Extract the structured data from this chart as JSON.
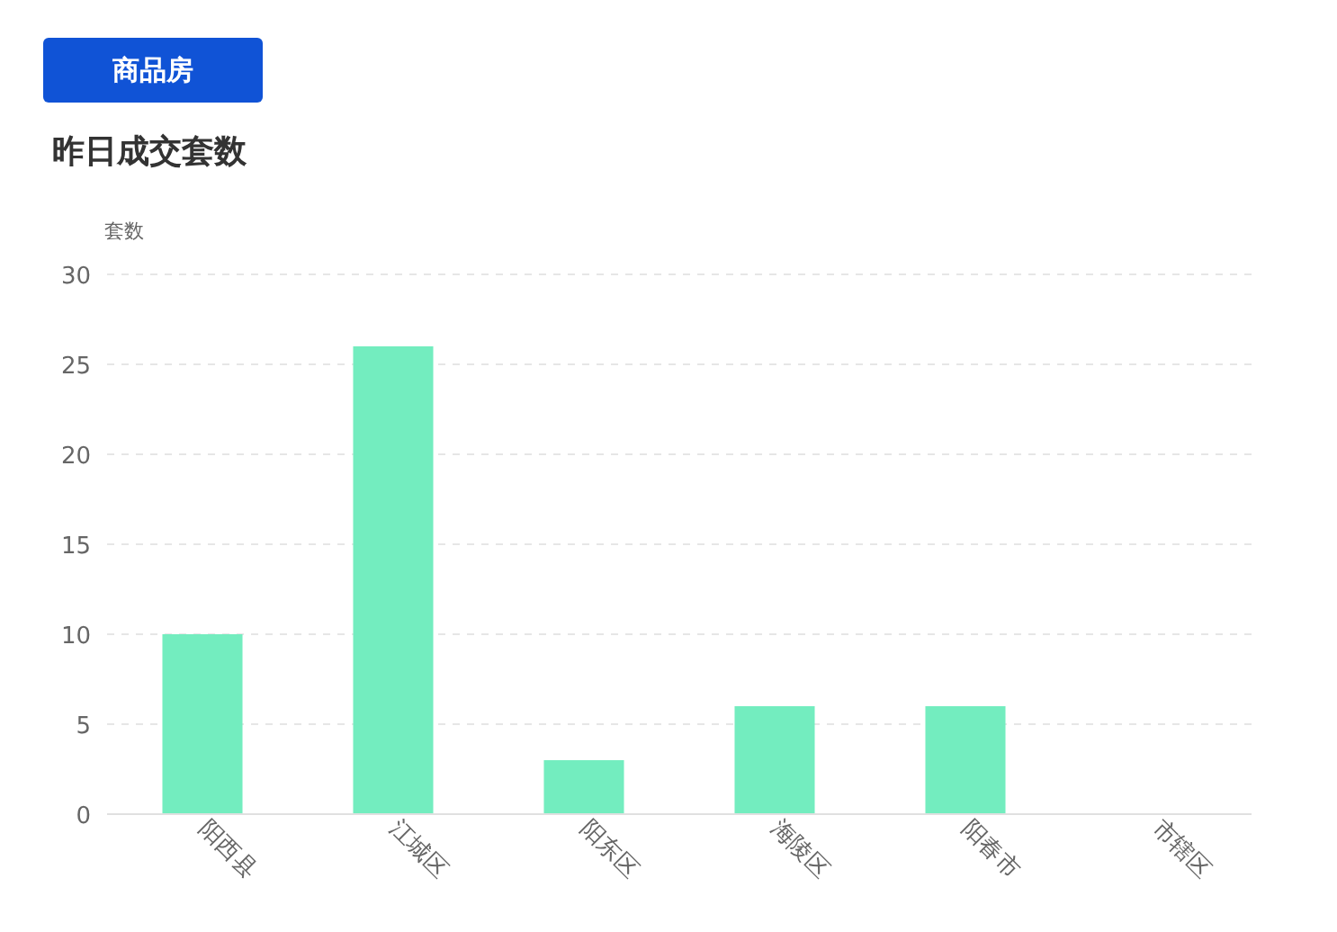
{
  "chart_data": {
    "type": "bar",
    "title": "昨日成交套数",
    "ylabel": "套数",
    "annotations": [
      "商品房"
    ],
    "categories": [
      "阳西县",
      "江城区",
      "阳东区",
      "海陵区",
      "阳春市",
      "市辖区"
    ],
    "values": [
      10,
      26,
      3,
      6,
      6,
      0
    ],
    "color": "#73edbf",
    "ylim": [
      0,
      30
    ],
    "yticks": [
      0,
      5,
      10,
      15,
      20,
      25,
      30
    ],
    "grid": "y"
  }
}
